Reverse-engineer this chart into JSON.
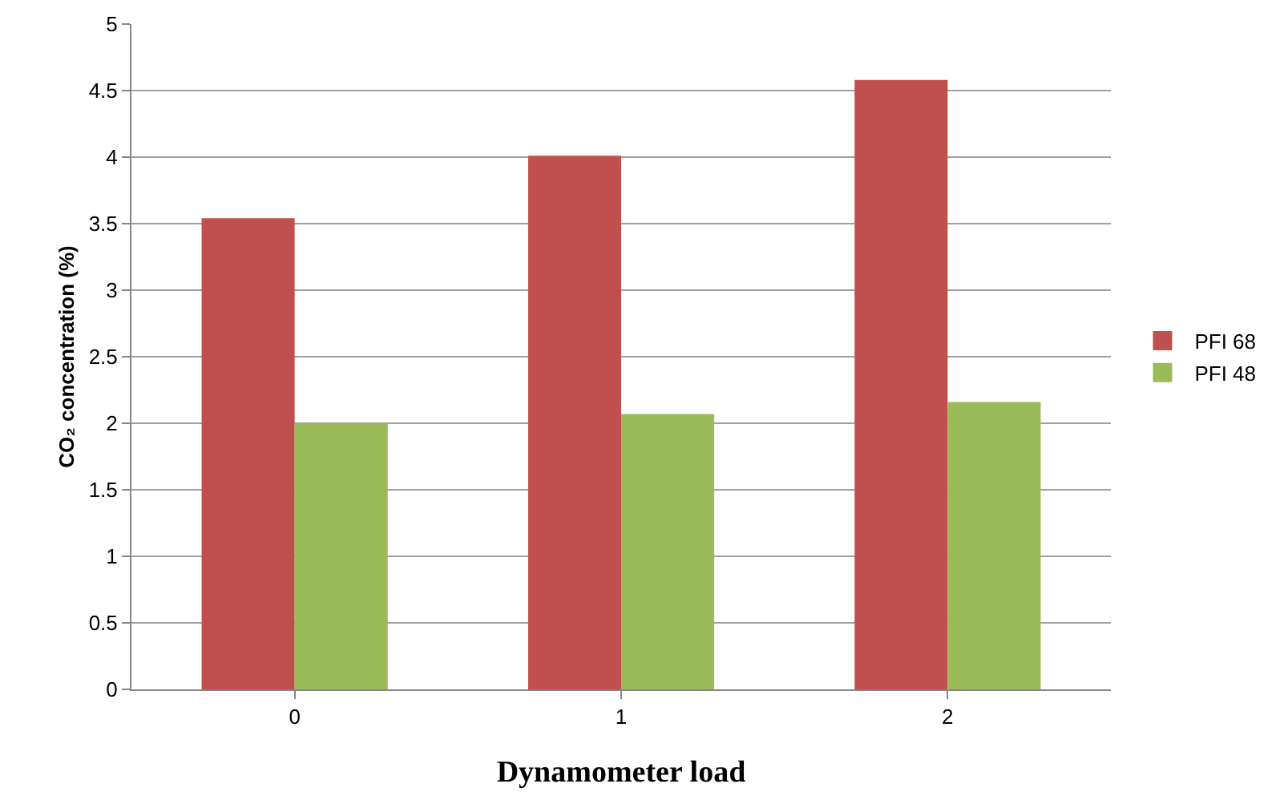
{
  "chart_data": {
    "type": "bar",
    "xlabel": "Dynamometer load",
    "ylabel": "CO₂ concentration (%)",
    "categories": [
      "0",
      "1",
      "2"
    ],
    "series": [
      {
        "name": "PFI 68",
        "color": "#c0504d",
        "values": [
          3.54,
          4.01,
          4.58
        ]
      },
      {
        "name": "PFI 48",
        "color": "#9bbb59",
        "values": [
          2.0,
          2.07,
          2.16
        ]
      }
    ],
    "ylim": [
      0,
      5
    ],
    "yticks": [
      0,
      0.5,
      1,
      1.5,
      2,
      2.5,
      3,
      3.5,
      4,
      4.5,
      5
    ],
    "grid": "y",
    "legend": "right"
  }
}
